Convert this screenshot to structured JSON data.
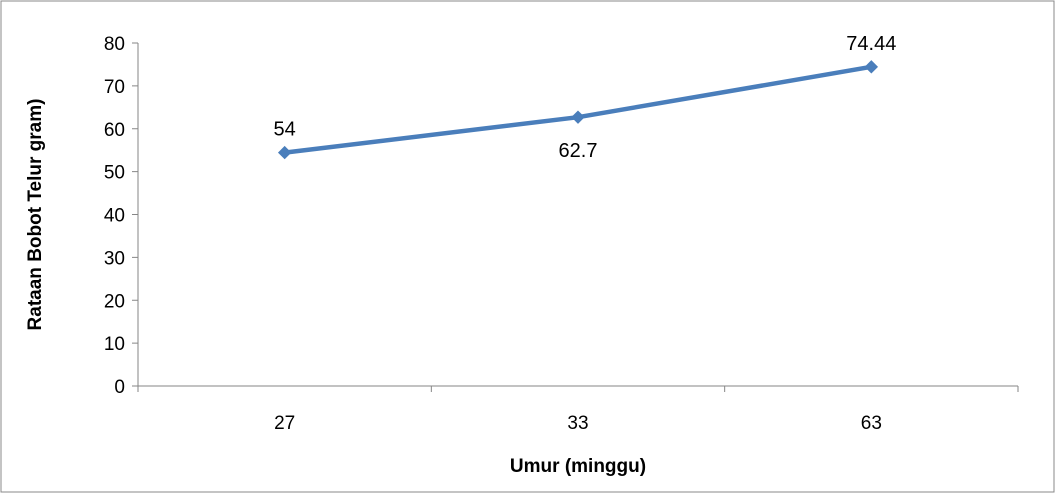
{
  "chart_data": {
    "type": "line",
    "title": "",
    "xlabel": "Umur (minggu)",
    "ylabel": "Rataan Bobot Telur  gram)",
    "categories": [
      "27",
      "33",
      "63"
    ],
    "series": [
      {
        "values": [
          54.44,
          62.7,
          74.44
        ],
        "data_labels": [
          "54",
          "62.7",
          "74.44"
        ],
        "data_label_positions": [
          "above",
          "below",
          "above"
        ],
        "color": "#4a7ebb",
        "marker": "diamond"
      }
    ],
    "ylim": [
      0,
      80
    ],
    "yticks": [
      0,
      10,
      20,
      30,
      40,
      50,
      60,
      70,
      80
    ],
    "grid": false,
    "legend": "none"
  }
}
